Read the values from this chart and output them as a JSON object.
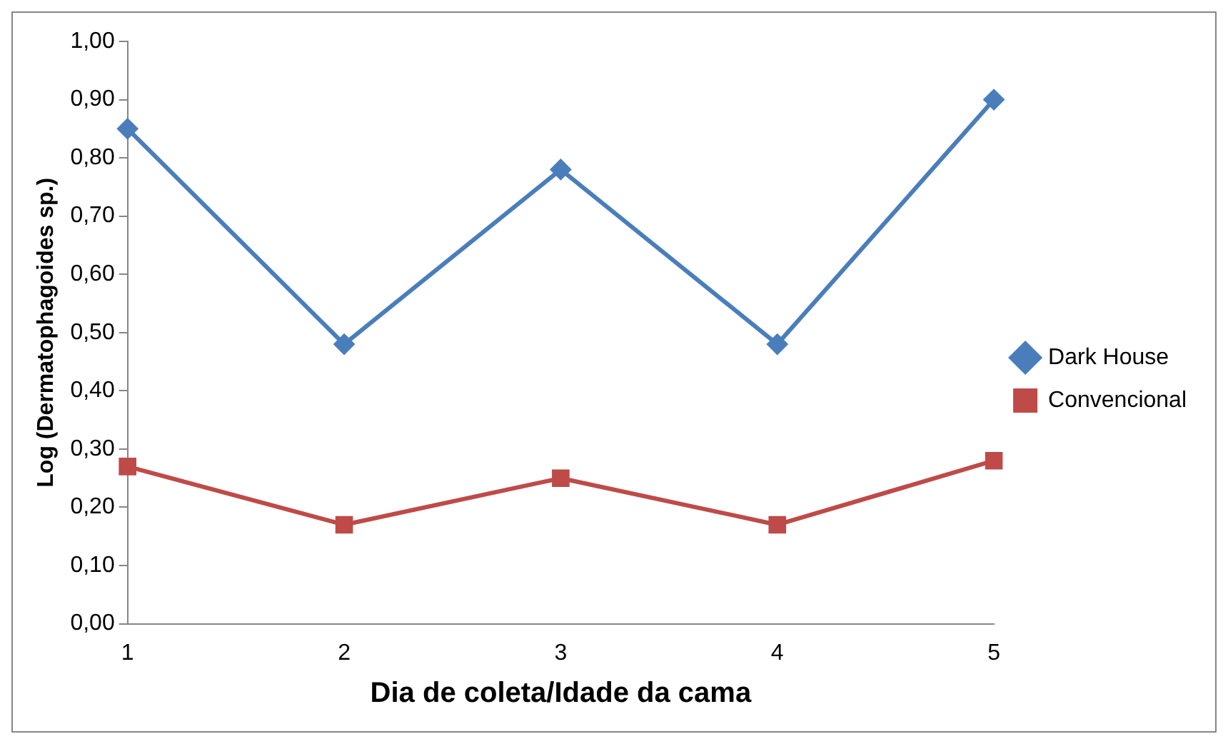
{
  "chart_data": {
    "type": "line",
    "xlabel": "Dia de coleta/Idade da cama",
    "ylabel": "Log (Dermatophagoides sp.)",
    "categories": [
      "1",
      "2",
      "3",
      "4",
      "5"
    ],
    "series": [
      {
        "name": "Dark House",
        "color": "#4a7ebb",
        "marker": "diamond",
        "values": [
          0.85,
          0.48,
          0.78,
          0.48,
          0.9
        ]
      },
      {
        "name": "Convencional",
        "color": "#be4b48",
        "marker": "square",
        "values": [
          0.27,
          0.17,
          0.25,
          0.17,
          0.28
        ]
      }
    ],
    "ylim": [
      0,
      1
    ],
    "yticks": [
      {
        "value": 0,
        "label": "0,00"
      },
      {
        "value": 0.1,
        "label": "0,10"
      },
      {
        "value": 0.2,
        "label": "0,20"
      },
      {
        "value": 0.3,
        "label": "0,30"
      },
      {
        "value": 0.4,
        "label": "0,40"
      },
      {
        "value": 0.5,
        "label": "0,50"
      },
      {
        "value": 0.6,
        "label": "0,60"
      },
      {
        "value": 0.7,
        "label": "0,70"
      },
      {
        "value": 0.8,
        "label": "0,80"
      },
      {
        "value": 0.9,
        "label": "0,90"
      },
      {
        "value": 1,
        "label": "1,00"
      }
    ],
    "grid": false,
    "legend": "right",
    "line_style": "solid"
  }
}
